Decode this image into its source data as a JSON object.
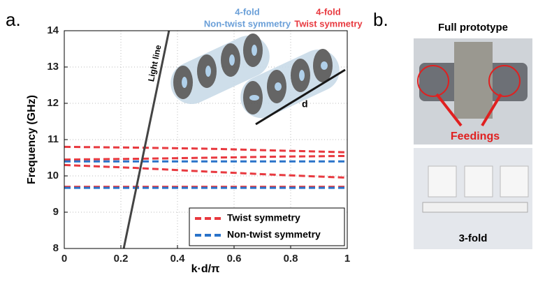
{
  "chart_data": {
    "type": "line",
    "panel_label": "a.",
    "xlabel": "k·d/π",
    "ylabel": "Frequency (GHz)",
    "xlim": [
      0,
      1
    ],
    "ylim": [
      8,
      14
    ],
    "xticks": [
      0,
      0.2,
      0.4,
      0.6,
      0.8,
      1
    ],
    "yticks": [
      8,
      9,
      10,
      11,
      12,
      13,
      14
    ],
    "grid": true,
    "legend": "lower right",
    "x": [
      0,
      0.25,
      0.5,
      0.75,
      1
    ],
    "series": [
      {
        "name": "Twist symmetry",
        "color": "#e8393f",
        "dash": true,
        "branches": [
          [
            10.8,
            10.78,
            10.75,
            10.7,
            10.65
          ],
          [
            10.45,
            10.47,
            10.5,
            10.53,
            10.55
          ],
          [
            10.3,
            10.22,
            10.12,
            10.03,
            9.95
          ],
          [
            9.7,
            9.7,
            9.7,
            9.7,
            9.7
          ]
        ]
      },
      {
        "name": "Non-twist symmetry",
        "color": "#2a73c9",
        "dash": true,
        "branches": [
          [
            10.4,
            10.4,
            10.4,
            10.4,
            10.4
          ],
          [
            9.67,
            9.67,
            9.67,
            9.67,
            9.67
          ]
        ]
      }
    ],
    "light_line": {
      "name": "Light line",
      "color": "#444444",
      "x": [
        0.21,
        0.37
      ],
      "values": [
        8,
        14
      ]
    },
    "annotations": {
      "nontwist_fold": "4-fold",
      "nontwist_label": "Non-twist symmetry",
      "twist_fold": "4-fold",
      "twist_label": "Twist symmetry",
      "length": "d"
    }
  },
  "panel_b": {
    "label": "b.",
    "top_title": "Full prototype",
    "top_callout": "Feedings",
    "bottom_caption": "3-fold"
  }
}
